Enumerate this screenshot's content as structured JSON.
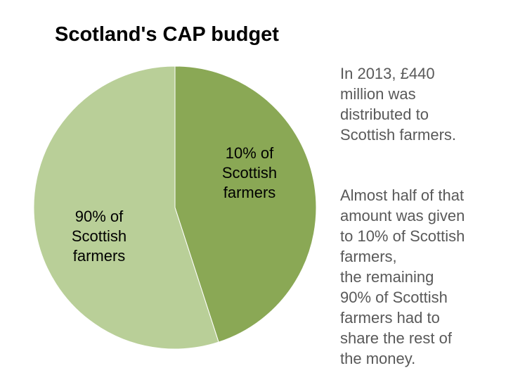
{
  "slide": {
    "title": "Scotland's CAP budget"
  },
  "chart_data": {
    "type": "pie",
    "title": "Scotland's CAP budget",
    "slices": [
      {
        "label": "10% of\nScottish\nfarmers",
        "value": 45,
        "color": "#8aa855"
      },
      {
        "label": "90% of\nScottish\nfarmers",
        "value": 55,
        "color": "#b9cf98"
      }
    ],
    "start_angle_deg": 0,
    "direction": "clockwise",
    "legend": "none"
  },
  "side_text": {
    "paragraph_1": "In 2013, £440\nmillion was\ndistributed to\nScottish farmers.",
    "paragraph_2": "Almost half of that\namount was given\nto 10% of Scottish\nfarmers,\nthe remaining\n90% of Scottish\nfarmers had to\nshare the rest of\nthe money."
  }
}
